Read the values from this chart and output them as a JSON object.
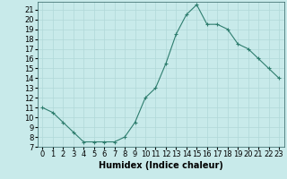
{
  "x": [
    0,
    1,
    2,
    3,
    4,
    5,
    6,
    7,
    8,
    9,
    10,
    11,
    12,
    13,
    14,
    15,
    16,
    17,
    18,
    19,
    20,
    21,
    22,
    23
  ],
  "y": [
    11,
    10.5,
    9.5,
    8.5,
    7.5,
    7.5,
    7.5,
    7.5,
    8.0,
    9.5,
    12.0,
    13.0,
    15.5,
    18.5,
    20.5,
    21.5,
    19.5,
    19.5,
    19.0,
    17.5,
    17.0,
    16.0,
    15.0,
    14.0
  ],
  "line_color": "#2e7d6e",
  "marker": "+",
  "marker_size": 3,
  "bg_color": "#c8eaea",
  "grid_color": "#b0d8d8",
  "xlabel": "Humidex (Indice chaleur)",
  "xlabel_fontsize": 7,
  "ylim": [
    7,
    21.8
  ],
  "xlim": [
    -0.5,
    23.5
  ],
  "yticks": [
    7,
    8,
    9,
    10,
    11,
    12,
    13,
    14,
    15,
    16,
    17,
    18,
    19,
    20,
    21
  ],
  "xticks": [
    0,
    1,
    2,
    3,
    4,
    5,
    6,
    7,
    8,
    9,
    10,
    11,
    12,
    13,
    14,
    15,
    16,
    17,
    18,
    19,
    20,
    21,
    22,
    23
  ],
  "tick_fontsize": 6,
  "axis_color": "#2e6060"
}
